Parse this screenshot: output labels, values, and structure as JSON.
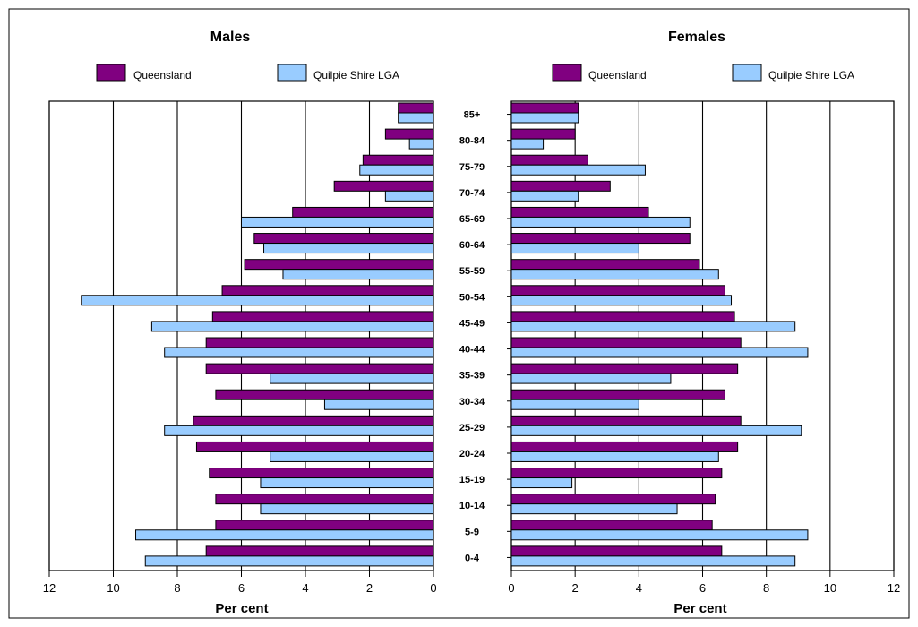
{
  "chart_data": {
    "type": "bar",
    "xlabel": "Per cent",
    "xlim": [
      0,
      12
    ],
    "xticks": [
      "0",
      "2",
      "4",
      "6",
      "8",
      "10",
      "12"
    ],
    "grid": true,
    "categories": [
      "85+",
      "80-84",
      "75-79",
      "70-74",
      "65-69",
      "60-64",
      "55-59",
      "50-54",
      "45-49",
      "40-44",
      "35-39",
      "30-34",
      "25-29",
      "20-24",
      "15-19",
      "10-14",
      "5-9",
      "0-4"
    ],
    "colors": {
      "Queensland": "#800080",
      "Quilpie Shire LGA": "#99ccff"
    },
    "panels": [
      {
        "title": "Males",
        "direction": "right-to-left",
        "legend": [
          "Queensland",
          "Quilpie Shire LGA"
        ],
        "series": [
          {
            "name": "Queensland",
            "values": [
              1.1,
              1.5,
              2.2,
              3.1,
              4.4,
              5.6,
              5.9,
              6.6,
              6.9,
              7.1,
              7.1,
              6.8,
              7.5,
              7.4,
              7.0,
              6.8,
              6.8,
              7.1
            ]
          },
          {
            "name": "Quilpie Shire LGA",
            "values": [
              1.1,
              0.75,
              2.3,
              1.5,
              6.0,
              5.3,
              4.7,
              11.0,
              8.8,
              8.4,
              5.1,
              3.4,
              8.4,
              5.1,
              5.4,
              5.4,
              9.3,
              9.0
            ]
          }
        ]
      },
      {
        "title": "Females",
        "direction": "left-to-right",
        "legend": [
          "Queensland",
          "Quilpie Shire LGA"
        ],
        "series": [
          {
            "name": "Queensland",
            "values": [
              2.1,
              2.0,
              2.4,
              3.1,
              4.3,
              5.6,
              5.9,
              6.7,
              7.0,
              7.2,
              7.1,
              6.7,
              7.2,
              7.1,
              6.6,
              6.4,
              6.3,
              6.6
            ]
          },
          {
            "name": "Quilpie Shire LGA",
            "values": [
              2.1,
              1.0,
              4.2,
              2.1,
              5.6,
              4.0,
              6.5,
              6.9,
              8.9,
              9.3,
              5.0,
              4.0,
              9.1,
              6.5,
              1.9,
              5.2,
              9.3,
              8.9
            ]
          }
        ]
      }
    ]
  }
}
